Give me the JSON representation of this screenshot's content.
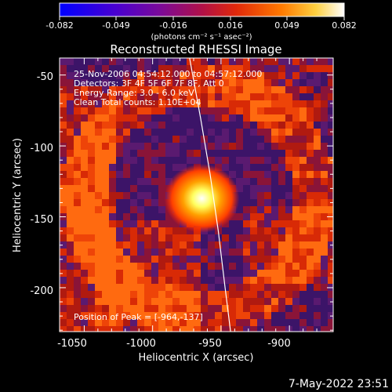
{
  "colorbar": {
    "tick_labels": [
      "-0.082",
      "-0.049",
      "-0.016",
      "0.016",
      "0.049",
      "0.082"
    ],
    "unit_label": "(photons cm⁻² s⁻¹ asec⁻²)",
    "range": [
      -0.082,
      0.082
    ],
    "colormap": [
      "#0000ff",
      "#5a00c8",
      "#8c0a8c",
      "#c81e28",
      "#ff5a00",
      "#ffb400",
      "#ffffff"
    ]
  },
  "title": "Reconstructed RHESSI Image",
  "info_lines": [
    "25-Nov-2006 04:54:12.000 to 04:57:12.000",
    "Detectors: 3F 4F 5F 6F 7F 8F, Att 0",
    "Energy Range: 3.0 - 6.0 keV",
    "Clean     Total counts: 1.10E+04"
  ],
  "peak_label": "Position of Peak = [-964,-137]",
  "x_axis": {
    "label": "Heliocentric X (arcsec)",
    "tick_labels": [
      "-1050",
      "-1000",
      "-950",
      "-900"
    ],
    "range": [
      -1068,
      -868
    ]
  },
  "y_axis": {
    "label": "Heliocentric Y (arcsec)",
    "tick_labels": [
      "-50",
      "-100",
      "-150",
      "-200"
    ],
    "range": [
      -231,
      -38
    ]
  },
  "footer_date": "7-May-2022 23:51",
  "chart_data": {
    "type": "heatmap",
    "title": "Reconstructed RHESSI Image",
    "xlabel": "Heliocentric X (arcsec)",
    "ylabel": "Heliocentric Y (arcsec)",
    "xlim": [
      -1068,
      -868
    ],
    "ylim": [
      -231,
      -38
    ],
    "zlim": [
      -0.082,
      0.082
    ],
    "peak": {
      "x": -964,
      "y": -137
    },
    "limb_curve": [
      [
        -973,
        -38
      ],
      [
        -965,
        -80
      ],
      [
        -958,
        -120
      ],
      [
        -952,
        -160
      ],
      [
        -947,
        -200
      ],
      [
        -943,
        -231
      ]
    ]
  }
}
